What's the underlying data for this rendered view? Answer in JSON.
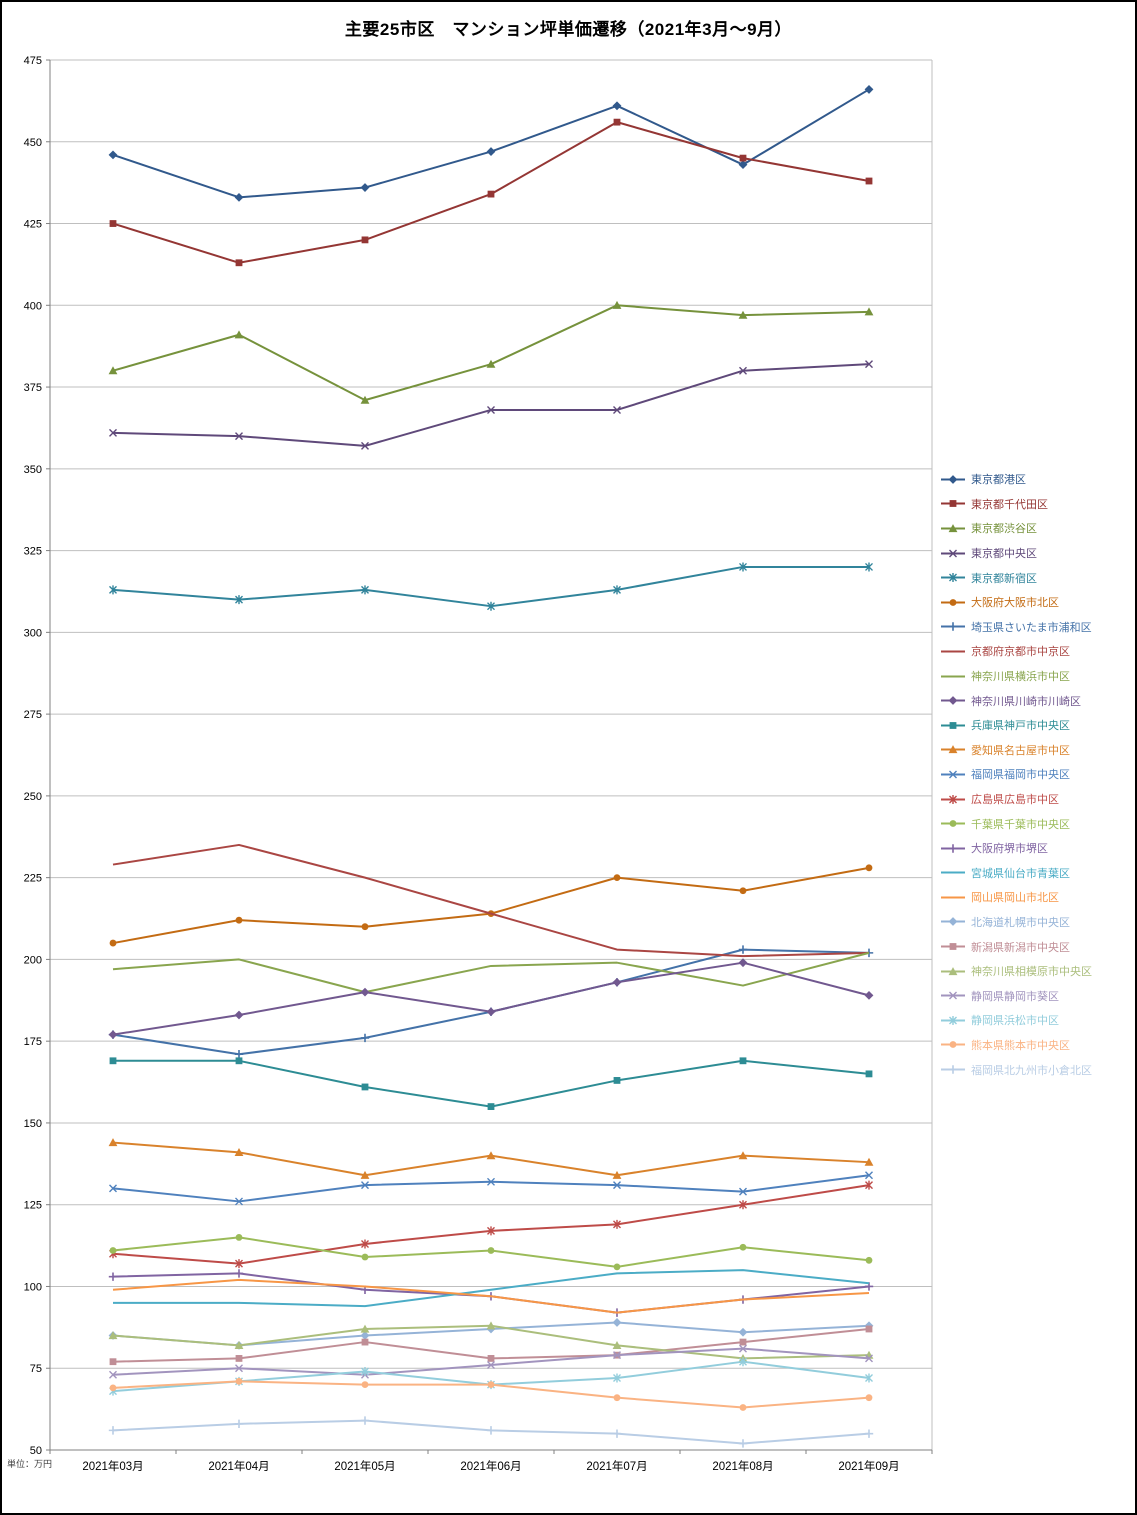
{
  "title": "主要25市区　マンション坪単価遷移（2021年3月～9月）",
  "unit_label": "単位：万円",
  "chart_data": {
    "type": "line",
    "title": "主要25市区　マンション坪単価遷移（2021年3月～9月）",
    "xlabel": "",
    "ylabel": "単位：万円",
    "x": [
      "2021年03月",
      "2021年04月",
      "2021年05月",
      "2021年06月",
      "2021年07月",
      "2021年08月",
      "2021年09月"
    ],
    "ylim": [
      50,
      475
    ],
    "yticks": [
      50,
      75,
      100,
      125,
      150,
      175,
      200,
      225,
      250,
      275,
      300,
      325,
      350,
      375,
      400,
      425,
      450,
      475
    ],
    "grid": true,
    "legend_position": "right",
    "series": [
      {
        "name": "東京都港区",
        "color": "#31598C",
        "marker": "diamond",
        "values": [
          446,
          433,
          436,
          447,
          461,
          443,
          466
        ]
      },
      {
        "name": "東京都千代田区",
        "color": "#943634",
        "marker": "square",
        "values": [
          425,
          413,
          420,
          434,
          456,
          445,
          438
        ]
      },
      {
        "name": "東京都渋谷区",
        "color": "#76923C",
        "marker": "triangle",
        "values": [
          380,
          391,
          371,
          382,
          400,
          397,
          398
        ]
      },
      {
        "name": "東京都中央区",
        "color": "#5F497A",
        "marker": "x",
        "values": [
          361,
          360,
          357,
          368,
          368,
          380,
          382
        ]
      },
      {
        "name": "東京都新宿区",
        "color": "#31849B",
        "marker": "star",
        "values": [
          313,
          310,
          313,
          308,
          313,
          320,
          320
        ]
      },
      {
        "name": "大阪府大阪市北区",
        "color": "#C36B13",
        "marker": "circle",
        "values": [
          205,
          212,
          210,
          214,
          225,
          221,
          228
        ]
      },
      {
        "name": "埼玉県さいたま市浦和区",
        "color": "#4472A8",
        "marker": "plus",
        "values": [
          177,
          171,
          176,
          184,
          193,
          203,
          202
        ]
      },
      {
        "name": "京都府京都市中京区",
        "color": "#AA4643",
        "marker": "none",
        "values": [
          229,
          235,
          225,
          214,
          203,
          201,
          202
        ]
      },
      {
        "name": "神奈川県横浜市中区",
        "color": "#89A54E",
        "marker": "none",
        "values": [
          197,
          200,
          190,
          198,
          199,
          192,
          202
        ]
      },
      {
        "name": "神奈川県川崎市川崎区",
        "color": "#71588F",
        "marker": "diamond",
        "values": [
          177,
          183,
          190,
          184,
          193,
          199,
          189
        ]
      },
      {
        "name": "兵庫県神戸市中央区",
        "color": "#2D8C94",
        "marker": "square",
        "values": [
          169,
          169,
          161,
          155,
          163,
          169,
          165
        ]
      },
      {
        "name": "愛知県名古屋市中区",
        "color": "#D9822B",
        "marker": "triangle",
        "values": [
          144,
          141,
          134,
          140,
          134,
          140,
          138
        ]
      },
      {
        "name": "福岡県福岡市中央区",
        "color": "#4F81BD",
        "marker": "x",
        "values": [
          130,
          126,
          131,
          132,
          131,
          129,
          134
        ]
      },
      {
        "name": "広島県広島市中区",
        "color": "#BE4B48",
        "marker": "star",
        "values": [
          110,
          107,
          113,
          117,
          119,
          125,
          131
        ]
      },
      {
        "name": "千葉県千葉市中央区",
        "color": "#9BBB59",
        "marker": "circle",
        "values": [
          111,
          115,
          109,
          111,
          106,
          112,
          108
        ]
      },
      {
        "name": "大阪府堺市堺区",
        "color": "#8064A2",
        "marker": "plus",
        "values": [
          103,
          104,
          99,
          97,
          92,
          96,
          100
        ]
      },
      {
        "name": "宮城県仙台市青葉区",
        "color": "#4BACC6",
        "marker": "none",
        "values": [
          95,
          95,
          94,
          99,
          104,
          105,
          101
        ]
      },
      {
        "name": "岡山県岡山市北区",
        "color": "#F79646",
        "marker": "none",
        "values": [
          99,
          102,
          100,
          97,
          92,
          96,
          98
        ]
      },
      {
        "name": "北海道札幌市中央区",
        "color": "#95B3D7",
        "marker": "diamond",
        "values": [
          85,
          82,
          85,
          87,
          89,
          86,
          88
        ]
      },
      {
        "name": "新潟県新潟市中央区",
        "color": "#C08E96",
        "marker": "square",
        "values": [
          77,
          78,
          83,
          78,
          79,
          83,
          87
        ]
      },
      {
        "name": "神奈川県相模原市中央区",
        "color": "#ABBE7C",
        "marker": "triangle",
        "values": [
          85,
          82,
          87,
          88,
          82,
          78,
          79
        ]
      },
      {
        "name": "静岡県静岡市葵区",
        "color": "#A294BE",
        "marker": "x",
        "values": [
          73,
          75,
          73,
          76,
          79,
          81,
          78
        ]
      },
      {
        "name": "静岡県浜松市中区",
        "color": "#92CDDC",
        "marker": "star",
        "values": [
          68,
          71,
          74,
          70,
          72,
          77,
          72
        ]
      },
      {
        "name": "熊本県熊本市中央区",
        "color": "#FAB383",
        "marker": "circle",
        "values": [
          69,
          71,
          70,
          70,
          66,
          63,
          66
        ]
      },
      {
        "name": "福岡県北九州市小倉北区",
        "color": "#B9CDE5",
        "marker": "plus",
        "values": [
          56,
          58,
          59,
          56,
          55,
          52,
          55
        ]
      }
    ]
  }
}
